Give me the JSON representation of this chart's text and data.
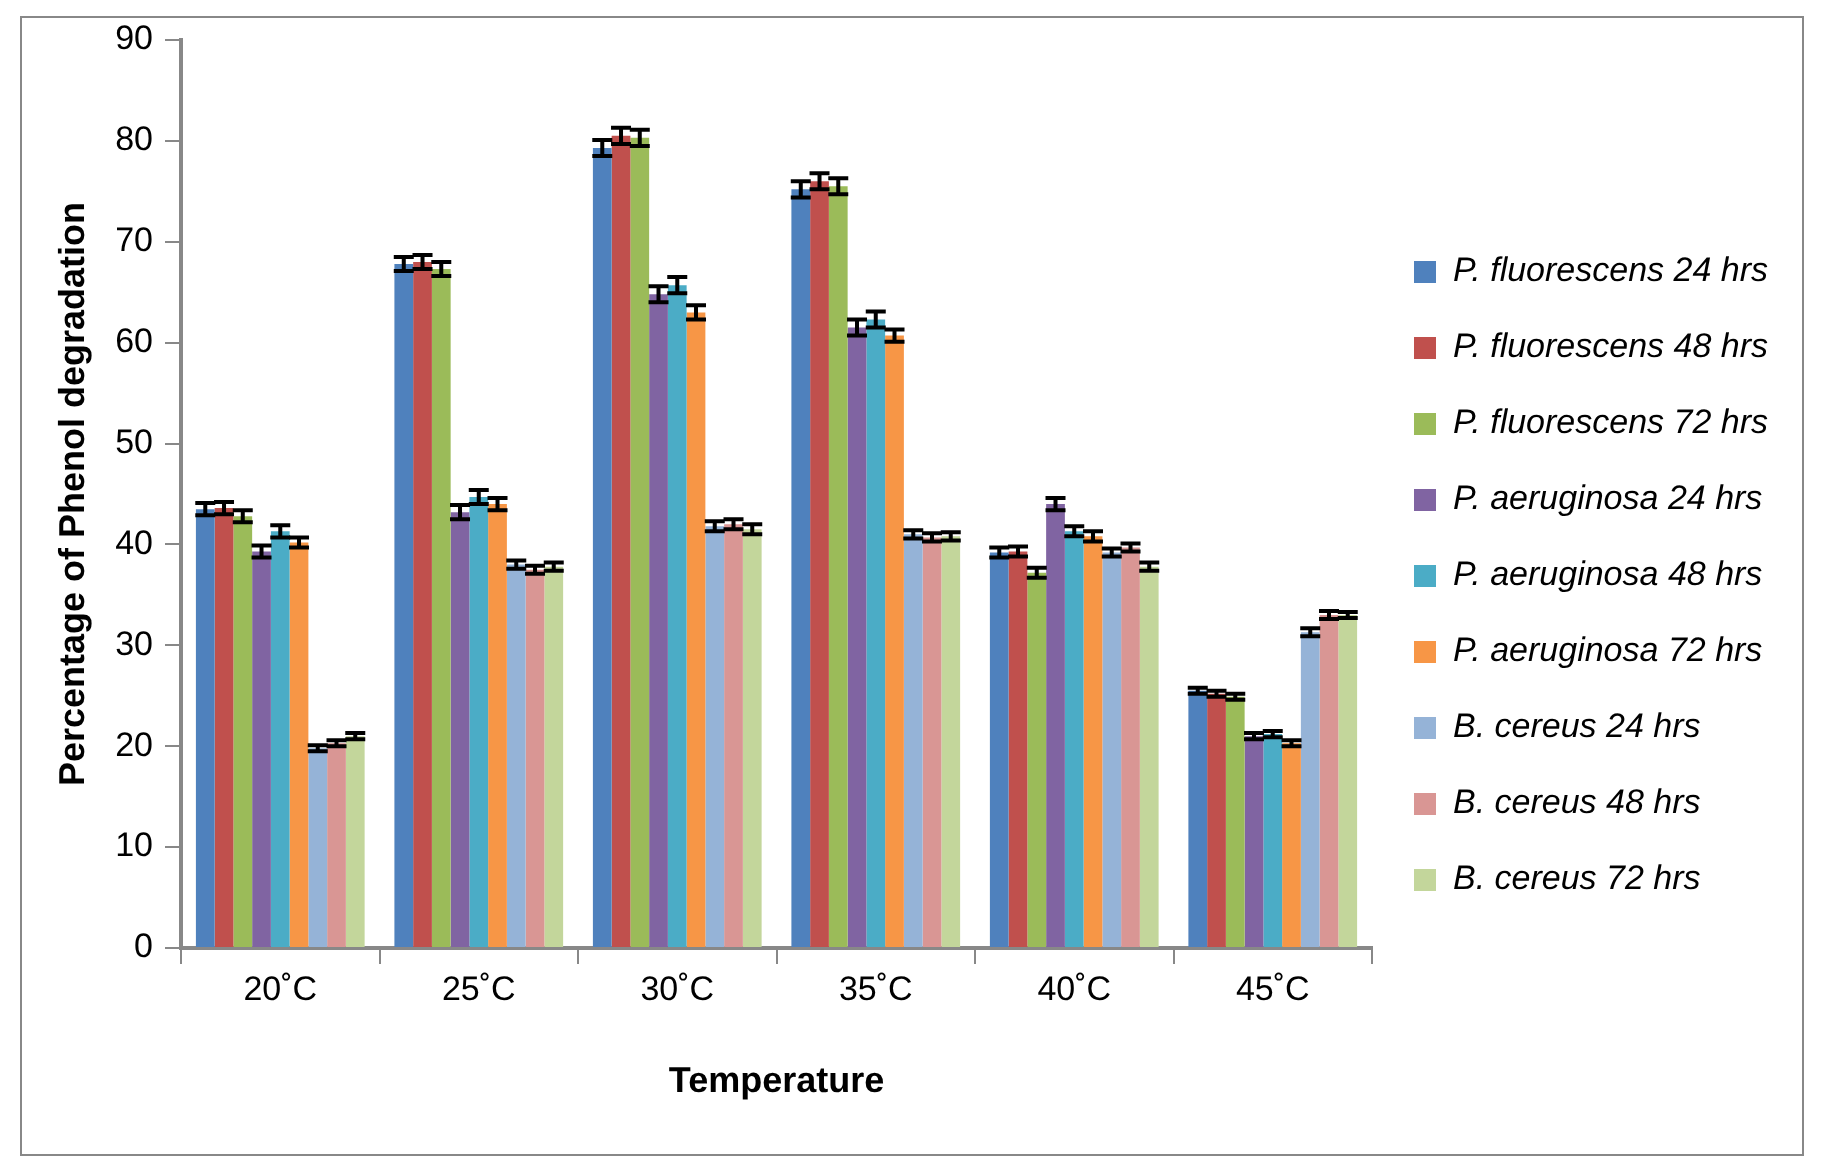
{
  "chart_data": {
    "type": "bar",
    "xlabel": "Temperature",
    "ylabel": "Percentage of Phenol degradation",
    "categories": [
      "20˚C",
      "25˚C",
      "30˚C",
      "35˚C",
      "40˚C",
      "45˚C"
    ],
    "ylim": [
      0,
      90
    ],
    "yticks": [
      0,
      10,
      20,
      30,
      40,
      50,
      60,
      70,
      80,
      90
    ],
    "grid": false,
    "legend": "right",
    "series": [
      {
        "name": "P. fluorescens 24 hrs",
        "color": "#4f81bd",
        "values": [
          43.5,
          67.8,
          79.3,
          75.2,
          39.2,
          25.5
        ],
        "errors": [
          0.6,
          0.7,
          0.8,
          0.8,
          0.5,
          0.3
        ]
      },
      {
        "name": "P. fluorescens 48 hrs",
        "color": "#c0504d",
        "values": [
          43.6,
          68,
          80.5,
          76,
          39.3,
          25.2
        ],
        "errors": [
          0.6,
          0.7,
          0.8,
          0.8,
          0.5,
          0.3
        ]
      },
      {
        "name": "P. fluorescens 72 hrs",
        "color": "#9bbb59",
        "values": [
          42.8,
          67.3,
          80.3,
          75.5,
          37.2,
          24.9
        ],
        "errors": [
          0.6,
          0.7,
          0.8,
          0.8,
          0.5,
          0.3
        ]
      },
      {
        "name": "P. aeruginosa 24 hrs",
        "color": "#8064a2",
        "values": [
          39.3,
          43.2,
          64.8,
          61.5,
          44,
          21
        ],
        "errors": [
          0.6,
          0.7,
          0.8,
          0.8,
          0.6,
          0.3
        ]
      },
      {
        "name": "P. aeruginosa 48 hrs",
        "color": "#4bacc6",
        "values": [
          41.3,
          44.7,
          65.7,
          62.3,
          41.3,
          21.2
        ],
        "errors": [
          0.6,
          0.7,
          0.8,
          0.8,
          0.5,
          0.3
        ]
      },
      {
        "name": "P. aeruginosa 72 hrs",
        "color": "#f79646",
        "values": [
          40.2,
          44,
          63,
          60.7,
          40.8,
          20.3
        ],
        "errors": [
          0.5,
          0.6,
          0.7,
          0.6,
          0.5,
          0.3
        ]
      },
      {
        "name": "B. cereus 24 hrs",
        "color": "#95b3d7",
        "values": [
          19.8,
          38,
          41.8,
          41,
          39.2,
          31.3
        ],
        "errors": [
          0.3,
          0.4,
          0.5,
          0.4,
          0.4,
          0.4
        ]
      },
      {
        "name": "B. cereus 48 hrs",
        "color": "#d99694",
        "values": [
          20.3,
          37.5,
          42,
          40.7,
          39.7,
          33
        ],
        "errors": [
          0.3,
          0.4,
          0.5,
          0.4,
          0.4,
          0.4
        ]
      },
      {
        "name": "B. cereus 72 hrs",
        "color": "#c3d69b",
        "values": [
          21,
          37.8,
          41.5,
          40.8,
          37.8,
          33
        ],
        "errors": [
          0.3,
          0.4,
          0.5,
          0.4,
          0.4,
          0.3
        ]
      }
    ]
  }
}
